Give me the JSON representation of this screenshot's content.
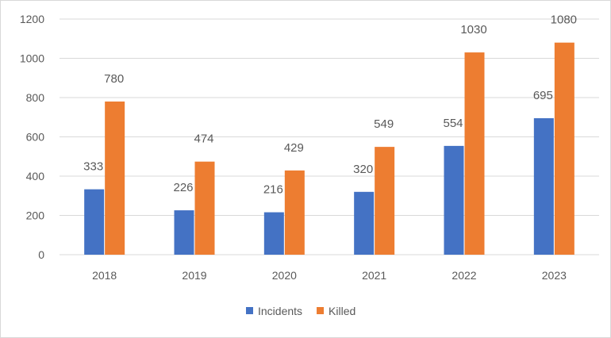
{
  "chart_data": {
    "type": "bar",
    "title": "",
    "xlabel": "",
    "ylabel": "",
    "categories": [
      "2018",
      "2019",
      "2020",
      "2021",
      "2022",
      "2023"
    ],
    "series": [
      {
        "name": "Incidents",
        "color": "#4472C4",
        "values": [
          333,
          226,
          216,
          320,
          554,
          695
        ]
      },
      {
        "name": "Killed",
        "color": "#ED7D31",
        "values": [
          780,
          474,
          429,
          549,
          1030,
          1080
        ]
      }
    ],
    "ylim": [
      0,
      1200
    ],
    "yticks": [
      0,
      200,
      400,
      600,
      800,
      1000,
      1200
    ],
    "grid": true,
    "legend": "bottom-center",
    "data_labels": true
  }
}
